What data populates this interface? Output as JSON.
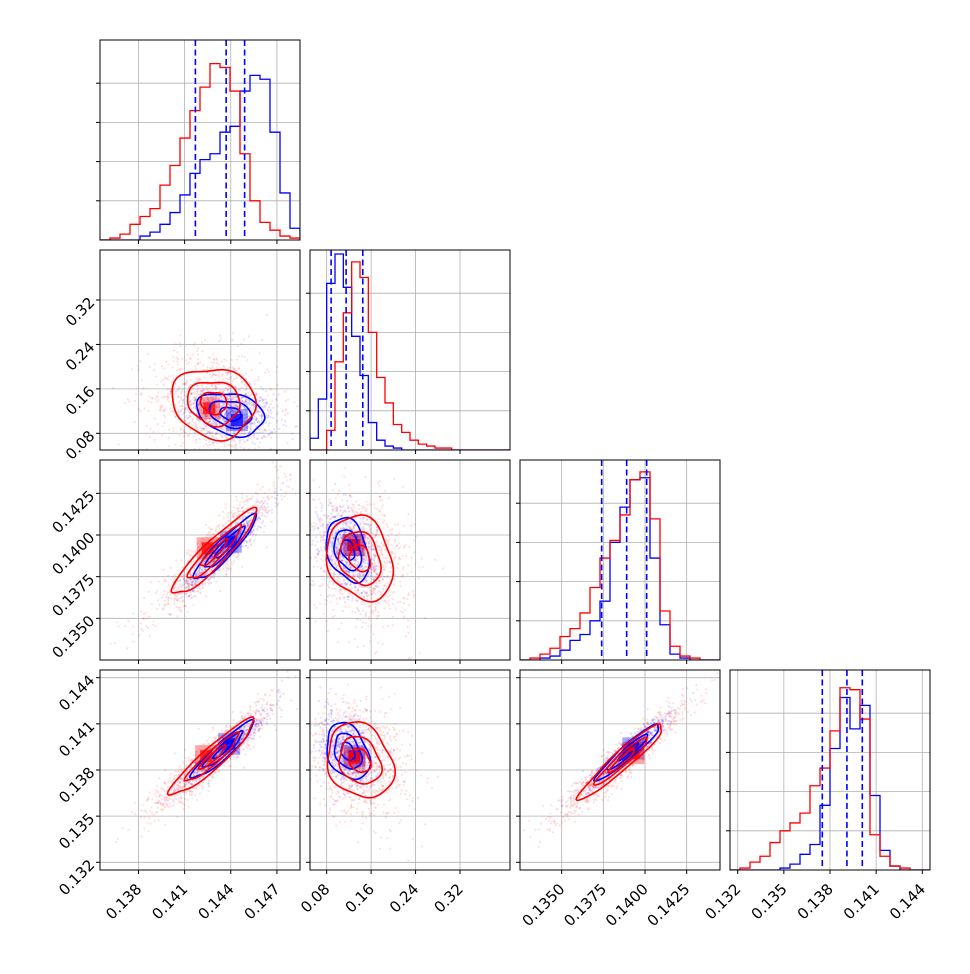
{
  "chart_data": {
    "type": "corner",
    "grid": true,
    "series": [
      {
        "color": "#0000ff"
      },
      {
        "color": "#ff0000"
      }
    ],
    "quantile_line_color": "#0000ff",
    "parameters": [
      {
        "range": [
          0.1355,
          0.1485
        ],
        "ticks": [
          0.138,
          0.141,
          0.144,
          0.147
        ],
        "tick_labels": [
          "0.138",
          "0.141",
          "0.144",
          "0.147"
        ],
        "quantiles": [
          0.1417,
          0.1437,
          0.1449
        ],
        "hist": {
          "edges_start": 0.1355,
          "bin_width": 0.00065,
          "blue": [
            0,
            0,
            0,
            0,
            0.02,
            0.04,
            0.08,
            0.14,
            0.23,
            0.34,
            0.41,
            0.44,
            0.55,
            0.58,
            0.76,
            0.84,
            0.82,
            0.55,
            0.24,
            0.06,
            0.02,
            0.01
          ],
          "red": [
            0,
            0.01,
            0.03,
            0.08,
            0.12,
            0.16,
            0.28,
            0.38,
            0.52,
            0.66,
            0.78,
            0.9,
            0.88,
            0.76,
            0.44,
            0.2,
            0.09,
            0.05,
            0.02,
            0.01,
            0,
            0
          ]
        }
      },
      {
        "range": [
          0.05,
          0.41
        ],
        "ticks": [
          0.08,
          0.16,
          0.24,
          0.32
        ],
        "tick_labels": [
          "0.08",
          "0.16",
          "0.24",
          "0.32"
        ],
        "quantiles": [
          0.088,
          0.115,
          0.145
        ],
        "hist": {
          "edges_start": 0.05,
          "bin_width": 0.015,
          "blue": [
            0.06,
            0.26,
            0.85,
            1.0,
            0.83,
            0.58,
            0.38,
            0.14,
            0.05,
            0.02,
            0.01,
            0,
            0,
            0,
            0,
            0,
            0,
            0,
            0,
            0,
            0,
            0,
            0,
            0
          ],
          "red": [
            0,
            0,
            0.1,
            0.45,
            0.7,
            0.96,
            0.88,
            0.6,
            0.37,
            0.24,
            0.13,
            0.09,
            0.05,
            0.03,
            0.02,
            0.01,
            0.01,
            0,
            0,
            0,
            0,
            0,
            0,
            0
          ]
        }
      },
      {
        "range": [
          0.1325,
          0.1445
        ],
        "ticks": [
          0.135,
          0.1375,
          0.14,
          0.1425
        ],
        "tick_labels": [
          "0.1350",
          "0.1375",
          "0.1400",
          "0.1425"
        ],
        "quantiles": [
          0.1374,
          0.1389,
          0.1401
        ],
        "hist": {
          "edges_start": 0.1325,
          "bin_width": 0.0006,
          "blue": [
            0,
            0,
            0.01,
            0.02,
            0.05,
            0.1,
            0.13,
            0.2,
            0.3,
            0.6,
            0.78,
            0.92,
            0.93,
            0.52,
            0.18,
            0.03,
            0.01,
            0,
            0,
            0
          ],
          "red": [
            0,
            0.01,
            0.03,
            0.06,
            0.12,
            0.16,
            0.24,
            0.37,
            0.52,
            0.61,
            0.74,
            0.92,
            0.96,
            0.72,
            0.25,
            0.07,
            0.02,
            0.01,
            0,
            0
          ]
        }
      },
      {
        "range": [
          0.1315,
          0.1445
        ],
        "ticks": [
          0.132,
          0.135,
          0.138,
          0.141,
          0.144
        ],
        "tick_labels": [
          "0.132",
          "0.135",
          "0.138",
          "0.141",
          "0.144"
        ],
        "quantiles": [
          0.1375,
          0.1391,
          0.1401
        ],
        "hist": {
          "edges_start": 0.1315,
          "bin_width": 0.00065,
          "blue": [
            0,
            0,
            0,
            0,
            0,
            0.01,
            0.03,
            0.08,
            0.13,
            0.33,
            0.62,
            0.88,
            0.72,
            0.84,
            0.38,
            0.1,
            0.02,
            0,
            0,
            0
          ],
          "red": [
            0,
            0.01,
            0.04,
            0.07,
            0.14,
            0.2,
            0.24,
            0.29,
            0.43,
            0.52,
            0.71,
            0.93,
            0.92,
            0.77,
            0.18,
            0.07,
            0.02,
            0.01,
            0,
            0
          ]
        }
      }
    ],
    "pairs": [
      {
        "row": 1,
        "col": 0,
        "blue": {
          "center": [
            0.144,
            0.115
          ],
          "spread": [
            0.00125,
            0.022
          ],
          "rho": -0.25,
          "fill": [
            0.1444,
            0.104
          ]
        },
        "red": {
          "center": [
            0.1429,
            0.135
          ],
          "spread": [
            0.00155,
            0.036
          ],
          "rho": -0.1,
          "fill": [
            0.1426,
            0.125
          ]
        }
      },
      {
        "row": 2,
        "col": 0,
        "blue": {
          "center": [
            0.1436,
            0.1392
          ],
          "spread": [
            0.00115,
            0.0011
          ],
          "rho": 0.92,
          "fill": [
            0.144,
            0.1396
          ]
        },
        "red": {
          "center": [
            0.1429,
            0.1389
          ],
          "spread": [
            0.00155,
            0.00145
          ],
          "rho": 0.92,
          "fill": [
            0.1425,
            0.1392
          ]
        }
      },
      {
        "row": 2,
        "col": 1,
        "blue": {
          "center": [
            0.118,
            0.1391
          ],
          "spread": [
            0.022,
            0.0011
          ],
          "rho": -0.3,
          "fill": [
            0.128,
            0.1394
          ]
        },
        "red": {
          "center": [
            0.14,
            0.1386
          ],
          "spread": [
            0.034,
            0.00145
          ],
          "rho": -0.2,
          "fill": [
            0.13,
            0.1394
          ]
        }
      },
      {
        "row": 3,
        "col": 0,
        "blue": {
          "center": [
            0.1435,
            0.1393
          ],
          "spread": [
            0.00115,
            0.00105
          ],
          "rho": 0.93,
          "fill": [
            0.1439,
            0.1397
          ]
        },
        "red": {
          "center": [
            0.1428,
            0.1388
          ],
          "spread": [
            0.00155,
            0.0014
          ],
          "rho": 0.93,
          "fill": [
            0.1424,
            0.1389
          ]
        }
      },
      {
        "row": 3,
        "col": 1,
        "blue": {
          "center": [
            0.118,
            0.1392
          ],
          "spread": [
            0.022,
            0.00105
          ],
          "rho": -0.3,
          "fill": [
            0.13,
            0.1389
          ]
        },
        "red": {
          "center": [
            0.14,
            0.1386
          ],
          "spread": [
            0.034,
            0.0014
          ],
          "rho": -0.2,
          "fill": [
            0.13,
            0.1388
          ]
        }
      },
      {
        "row": 3,
        "col": 2,
        "blue": {
          "center": [
            0.139,
            0.1392
          ],
          "spread": [
            0.0011,
            0.00105
          ],
          "rho": 0.95,
          "fill": [
            0.1393,
            0.1394
          ]
        },
        "red": {
          "center": [
            0.1386,
            0.1386
          ],
          "spread": [
            0.00145,
            0.0014
          ],
          "rho": 0.95,
          "fill": [
            0.1393,
            0.1391
          ]
        }
      }
    ]
  }
}
